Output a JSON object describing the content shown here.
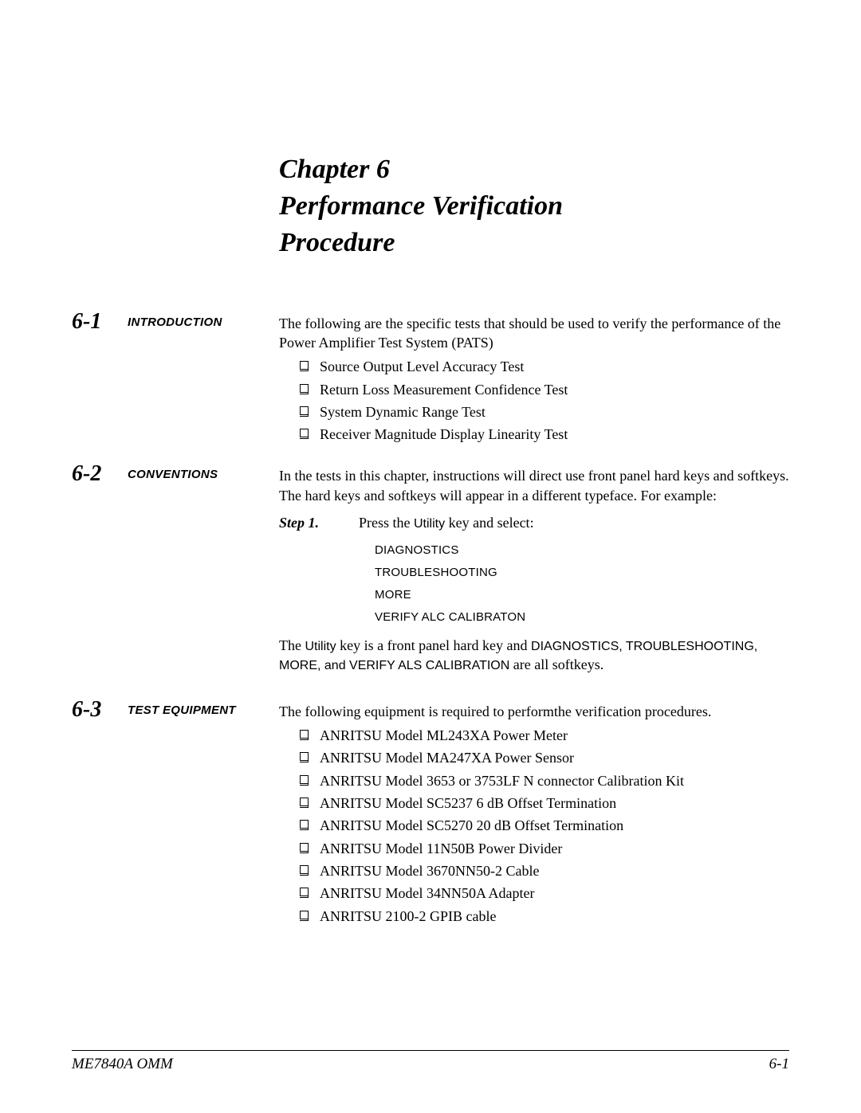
{
  "chapter": {
    "line1": "Chapter 6",
    "line2": "Performance Verification",
    "line3": "Procedure"
  },
  "sections": [
    {
      "num": "6-1",
      "title": "INTRODUCTION",
      "intro": "The following are the specific tests that should be used to verify the performance of the Power Amplifier Test System (PATS)",
      "checklist": [
        "Source Output Level Accuracy Test",
        "Return Loss Measurement Confidence Test",
        "System Dynamic Range Test",
        "Receiver Magnitude Display Linearity Test"
      ]
    },
    {
      "num": "6-2",
      "title": "CONVENTIONS",
      "intro": "In the tests in this chapter, instructions will direct use front panel hard keys and softkeys. The hard keys and softkeys will appear in a different typeface. For example:",
      "step_label": "Step 1.",
      "step_prefix": "Press the ",
      "step_hardkey": "Utility",
      "step_suffix": " key and select:",
      "softkeys": [
        "DIAGNOSTICS",
        "TROUBLESHOOTING",
        "MORE",
        "VERIFY ALC CALIBRATON"
      ],
      "explain_prefix": "The ",
      "explain_hardkey": "Utility",
      "explain_mid": " key is a front panel hard key and ",
      "explain_softkeys": "DIAGNOSTICS, TROUBLESHOOTING, MORE, and VERIFY ALS CALIBRATION",
      "explain_suffix": " are all softkeys."
    },
    {
      "num": "6-3",
      "title": "TEST EQUIPMENT",
      "intro": "The following equipment is required to performthe verification procedures.",
      "checklist": [
        "ANRITSU Model ML243XA Power Meter",
        "ANRITSU Model MA247XA Power Sensor",
        "ANRITSU Model 3653 or 3753LF N connector Calibration Kit",
        "ANRITSU Model SC5237 6 dB Offset Termination",
        "ANRITSU Model SC5270 20 dB Offset Termination",
        "ANRITSU Model 11N50B Power Divider",
        "ANRITSU Model 3670NN50-2 Cable",
        "ANRITSU Model 34NN50A Adapter",
        "ANRITSU 2100-2 GPIB cable"
      ]
    }
  ],
  "footer": {
    "left": "ME7840A OMM",
    "right": "6-1"
  }
}
